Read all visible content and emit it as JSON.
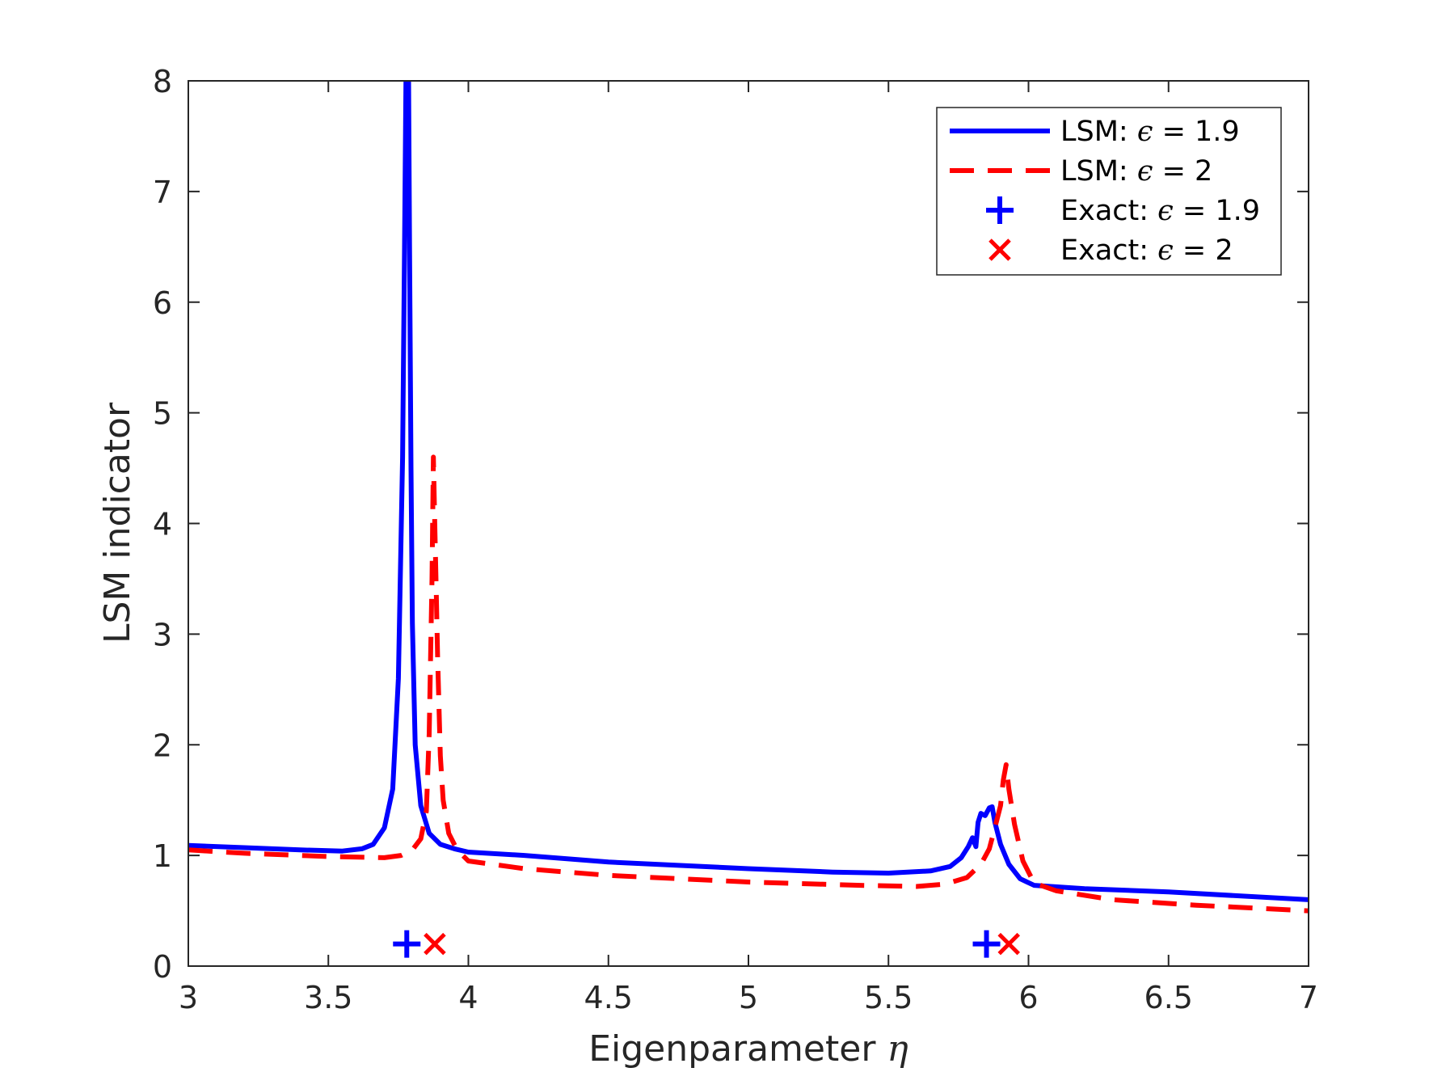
{
  "chart_data": {
    "type": "line",
    "xlabel": "Eigenparameter",
    "xlabel_symbol": "η",
    "ylabel": "LSM indicator",
    "xlim": [
      3,
      7
    ],
    "ylim": [
      0,
      8
    ],
    "x_ticks": [
      "3",
      "3.5",
      "4",
      "4.5",
      "5",
      "5.5",
      "6",
      "6.5",
      "7"
    ],
    "y_ticks": [
      "0",
      "1",
      "2",
      "3",
      "4",
      "5",
      "6",
      "7",
      "8"
    ],
    "grid": false,
    "legend_position": "top-right",
    "series": [
      {
        "name": "LSM: ϵ = 1.9",
        "label_prefix": "LSM:",
        "label_symbol": "ϵ",
        "label_value": "= 1.9",
        "style": "solid",
        "color": "#0000ff",
        "x": [
          3.0,
          3.2,
          3.4,
          3.55,
          3.62,
          3.66,
          3.7,
          3.73,
          3.75,
          3.765,
          3.772,
          3.778,
          3.782,
          3.786,
          3.79,
          3.795,
          3.8,
          3.81,
          3.83,
          3.86,
          3.9,
          3.95,
          4.0,
          4.2,
          4.5,
          5.0,
          5.3,
          5.5,
          5.65,
          5.72,
          5.76,
          5.785,
          5.8,
          5.812,
          5.82,
          5.83,
          5.845,
          5.86,
          5.87,
          5.88,
          5.9,
          5.93,
          5.97,
          6.02,
          6.2,
          6.5,
          7.0
        ],
        "y": [
          1.09,
          1.07,
          1.05,
          1.04,
          1.06,
          1.1,
          1.25,
          1.6,
          2.6,
          4.6,
          6.5,
          8.3,
          6.9,
          8.3,
          6.5,
          4.5,
          3.1,
          2.0,
          1.45,
          1.2,
          1.1,
          1.06,
          1.03,
          1.0,
          0.94,
          0.88,
          0.85,
          0.84,
          0.86,
          0.9,
          0.98,
          1.08,
          1.16,
          1.08,
          1.3,
          1.38,
          1.36,
          1.43,
          1.44,
          1.3,
          1.1,
          0.92,
          0.79,
          0.73,
          0.7,
          0.67,
          0.6
        ]
      },
      {
        "name": "LSM: ϵ = 2",
        "label_prefix": "LSM:",
        "label_symbol": "ϵ",
        "label_value": "= 2",
        "style": "dashed",
        "color": "#ff0000",
        "x": [
          3.0,
          3.2,
          3.5,
          3.7,
          3.76,
          3.8,
          3.83,
          3.85,
          3.86,
          3.87,
          3.875,
          3.88,
          3.885,
          3.89,
          3.9,
          3.91,
          3.93,
          3.96,
          4.0,
          4.2,
          4.5,
          5.0,
          5.4,
          5.6,
          5.7,
          5.78,
          5.83,
          5.86,
          5.88,
          5.9,
          5.91,
          5.92,
          5.93,
          5.95,
          5.98,
          6.02,
          6.1,
          6.3,
          6.6,
          7.0
        ],
        "y": [
          1.05,
          1.02,
          0.99,
          0.98,
          1.0,
          1.05,
          1.15,
          1.4,
          2.1,
          3.5,
          4.6,
          4.0,
          3.4,
          2.8,
          1.9,
          1.5,
          1.2,
          1.05,
          0.95,
          0.88,
          0.82,
          0.76,
          0.73,
          0.72,
          0.74,
          0.8,
          0.92,
          1.06,
          1.25,
          1.45,
          1.68,
          1.82,
          1.6,
          1.28,
          0.95,
          0.75,
          0.68,
          0.6,
          0.55,
          0.5
        ]
      },
      {
        "name": "Exact: ϵ = 1.9",
        "label_prefix": "Exact:",
        "label_symbol": "ϵ",
        "label_value": "= 1.9",
        "style": "marker-plus",
        "color": "#0000ff",
        "x": [
          3.78,
          5.85
        ],
        "y": [
          0.2,
          0.2
        ]
      },
      {
        "name": "Exact: ϵ = 2",
        "label_prefix": "Exact:",
        "label_symbol": "ϵ",
        "label_value": "= 2",
        "style": "marker-x",
        "color": "#ff0000",
        "x": [
          3.88,
          5.93
        ],
        "y": [
          0.2,
          0.2
        ]
      }
    ]
  }
}
